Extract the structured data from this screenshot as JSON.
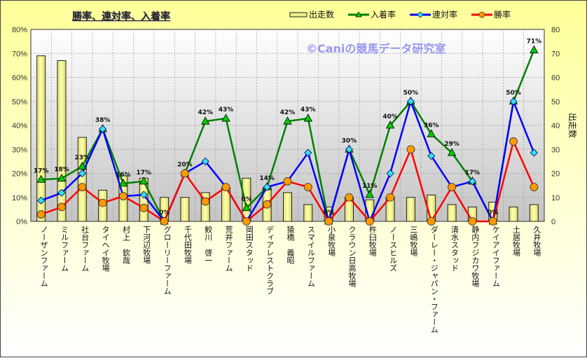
{
  "chart_data": {
    "type": "bar+line",
    "title": "勝率、連対率、入着率",
    "watermark": "©Caniの競馬データ研究室",
    "ylabel_right": "出走数",
    "ylim_left": [
      0,
      80
    ],
    "ylim_right": [
      0,
      80
    ],
    "yticks_left": [
      "0%",
      "10%",
      "20%",
      "30%",
      "40%",
      "50%",
      "60%",
      "70%",
      "80%"
    ],
    "yticks_right": [
      "0",
      "10",
      "20",
      "30",
      "40",
      "50",
      "60",
      "70",
      "80"
    ],
    "grid": true,
    "legend_position": "top",
    "categories": [
      "ノーザンファーム",
      "ミルファーム",
      "社台ファーム",
      "タイヘイ牧場",
      "村上　欽哉",
      "下河辺牧場",
      "グローリーファーム",
      "千代田牧場",
      "鮫川　啓一",
      "荒井ファーム",
      "岡田スタッド",
      "ディアレストクラブ",
      "猿橋　義昭",
      "スマイルファーム",
      "小泉牧場",
      "クラウン日高牧場",
      "杵臼牧場",
      "ノースヒルズ",
      "三嶋牧場",
      "ダーレー・ジャパン・ファーム",
      "清水スタッド",
      "静内フジカワ牧場",
      "ケイアイファーム",
      "土居牧場",
      "久井牧場"
    ],
    "series": [
      {
        "name": "出走数",
        "type": "bar",
        "axis": "right",
        "color": "#f0f08a",
        "values": [
          69,
          67,
          35,
          13,
          19,
          18,
          10,
          10,
          12,
          14,
          18,
          14,
          12,
          7,
          6,
          10,
          9,
          10,
          10,
          11,
          7,
          6,
          8,
          6,
          7
        ]
      },
      {
        "name": "入着率",
        "type": "line",
        "axis": "left",
        "color": "#008000",
        "marker": "triangle",
        "marker_color": "#00cc00",
        "values": [
          17.4,
          17.9,
          22.9,
          38.5,
          15.8,
          16.7,
          0,
          20,
          41.7,
          42.9,
          5.6,
          14.3,
          41.7,
          42.9,
          0,
          30,
          11.1,
          40,
          50,
          36.4,
          28.6,
          16.7,
          0,
          50,
          71.4
        ],
        "labels": [
          "17%",
          "18%",
          "23%",
          "38%",
          "16%",
          "17%",
          "0%",
          "20%",
          "42%",
          "43%",
          "6%",
          "14%",
          "42%",
          "43%",
          "0%",
          "30%",
          "11%",
          "40%",
          "50%",
          "36%",
          "29%",
          "17%",
          "0%",
          "50%",
          "71%"
        ]
      },
      {
        "name": "連対率",
        "type": "line",
        "axis": "left",
        "color": "#0000ff",
        "marker": "diamond",
        "marker_color": "#33ddff",
        "values": [
          8.7,
          11.9,
          20,
          38.5,
          10.5,
          11.1,
          0,
          20,
          25,
          14.3,
          0,
          14.3,
          16.7,
          28.6,
          0,
          30,
          0,
          20,
          50,
          27.3,
          14.3,
          16.7,
          0,
          50,
          28.6
        ]
      },
      {
        "name": "勝率",
        "type": "line",
        "axis": "left",
        "color": "#ff0000",
        "marker": "circle",
        "marker_color": "#ff9900",
        "values": [
          2.9,
          6,
          14.3,
          7.7,
          10.5,
          5.6,
          0,
          20,
          8.3,
          14.3,
          0,
          7.1,
          16.7,
          14.3,
          0,
          10,
          0,
          10,
          30,
          0,
          14.3,
          0,
          0,
          33.3,
          14.3
        ]
      }
    ]
  }
}
